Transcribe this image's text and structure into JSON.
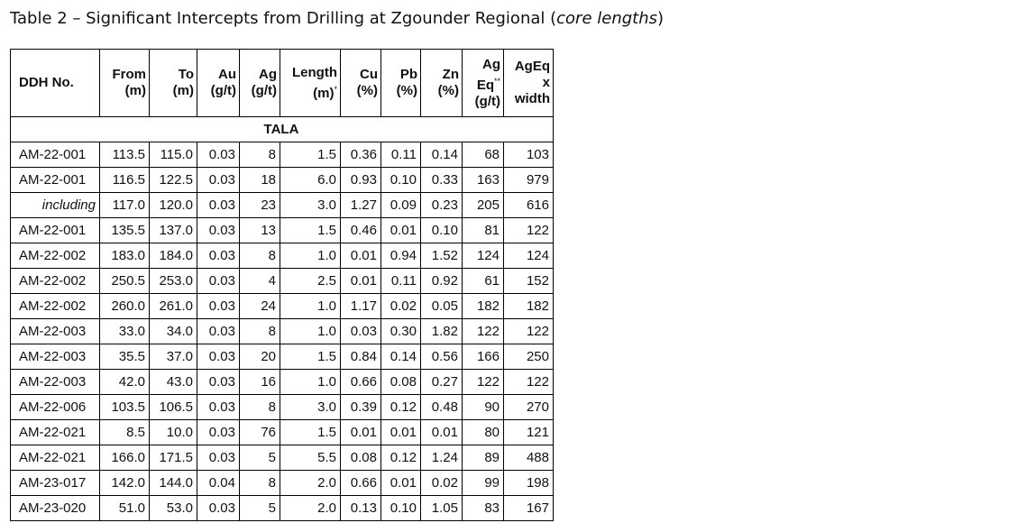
{
  "title": {
    "main": "Table 2 – Significant Intercepts from Drilling at Zgounder Regional (",
    "italic": "core lengths",
    "close": ")"
  },
  "headers": [
    {
      "l1": "DDH No.",
      "l2": "",
      "l3": ""
    },
    {
      "l1": "From",
      "l2": "(m)",
      "l3": ""
    },
    {
      "l1": "To",
      "l2": "(m)",
      "l3": ""
    },
    {
      "l1": "Au",
      "l2": "(g/t)",
      "l3": ""
    },
    {
      "l1": "Ag",
      "l2": "(g/t)",
      "l3": ""
    },
    {
      "l1": "Length",
      "l2": "(m)",
      "sup": "*",
      "l3": ""
    },
    {
      "l1": "Cu",
      "l2": "(%)",
      "l3": ""
    },
    {
      "l1": "Pb",
      "l2": "(%)",
      "l3": ""
    },
    {
      "l1": "Zn",
      "l2": "(%)",
      "l3": ""
    },
    {
      "l1": "Ag",
      "l2": "Eq",
      "sup": "**",
      "l3": "(g/t)"
    },
    {
      "l1": "AgEq",
      "l2": "x",
      "l3": "width"
    }
  ],
  "section": "TALA",
  "rows": [
    [
      "AM-22-001",
      "113.5",
      "115.0",
      "0.03",
      "8",
      "1.5",
      "0.36",
      "0.11",
      "0.14",
      "68",
      "103"
    ],
    [
      "AM-22-001",
      "116.5",
      "122.5",
      "0.03",
      "18",
      "6.0",
      "0.93",
      "0.10",
      "0.33",
      "163",
      "979"
    ],
    [
      "including",
      "117.0",
      "120.0",
      "0.03",
      "23",
      "3.0",
      "1.27",
      "0.09",
      "0.23",
      "205",
      "616"
    ],
    [
      "AM-22-001",
      "135.5",
      "137.0",
      "0.03",
      "13",
      "1.5",
      "0.46",
      "0.01",
      "0.10",
      "81",
      "122"
    ],
    [
      "AM-22-002",
      "183.0",
      "184.0",
      "0.03",
      "8",
      "1.0",
      "0.01",
      "0.94",
      "1.52",
      "124",
      "124"
    ],
    [
      "AM-22-002",
      "250.5",
      "253.0",
      "0.03",
      "4",
      "2.5",
      "0.01",
      "0.11",
      "0.92",
      "61",
      "152"
    ],
    [
      "AM-22-002",
      "260.0",
      "261.0",
      "0.03",
      "24",
      "1.0",
      "1.17",
      "0.02",
      "0.05",
      "182",
      "182"
    ],
    [
      "AM-22-003",
      "33.0",
      "34.0",
      "0.03",
      "8",
      "1.0",
      "0.03",
      "0.30",
      "1.82",
      "122",
      "122"
    ],
    [
      "AM-22-003",
      "35.5",
      "37.0",
      "0.03",
      "20",
      "1.5",
      "0.84",
      "0.14",
      "0.56",
      "166",
      "250"
    ],
    [
      "AM-22-003",
      "42.0",
      "43.0",
      "0.03",
      "16",
      "1.0",
      "0.66",
      "0.08",
      "0.27",
      "122",
      "122"
    ],
    [
      "AM-22-006",
      "103.5",
      "106.5",
      "0.03",
      "8",
      "3.0",
      "0.39",
      "0.12",
      "0.48",
      "90",
      "270"
    ],
    [
      "AM-22-021",
      "8.5",
      "10.0",
      "0.03",
      "76",
      "1.5",
      "0.01",
      "0.01",
      "0.01",
      "80",
      "121"
    ],
    [
      "AM-22-021",
      "166.0",
      "171.5",
      "0.03",
      "5",
      "5.5",
      "0.08",
      "0.12",
      "1.24",
      "89",
      "488"
    ],
    [
      "AM-23-017",
      "142.0",
      "144.0",
      "0.04",
      "8",
      "2.0",
      "0.66",
      "0.01",
      "0.02",
      "99",
      "198"
    ],
    [
      "AM-23-020",
      "51.0",
      "53.0",
      "0.03",
      "5",
      "2.0",
      "0.13",
      "0.10",
      "1.05",
      "83",
      "167"
    ]
  ]
}
